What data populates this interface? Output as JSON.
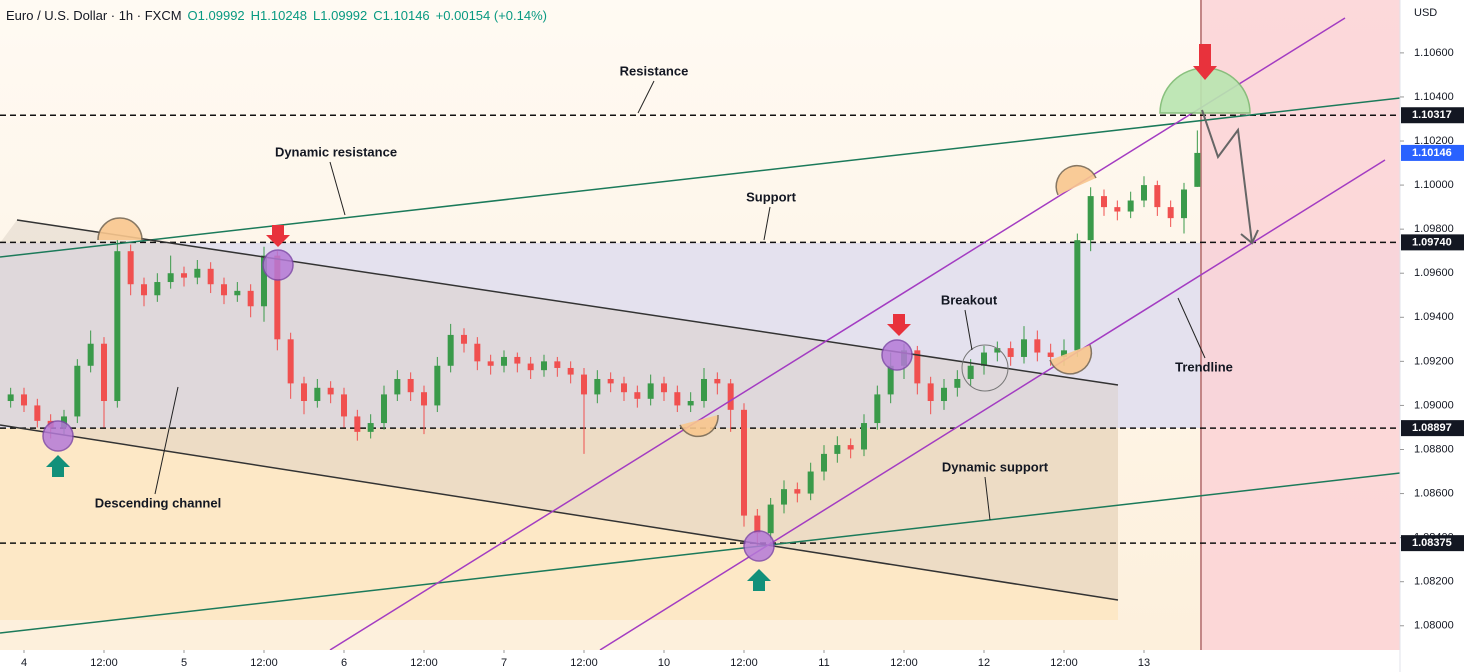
{
  "chart_data": {
    "type": "candlestick",
    "title": "Euro / U.S. Dollar · 1h · FXCM",
    "ohlc": [
      "O1.09992",
      "H1.10248",
      "L1.09992",
      "C1.10146"
    ],
    "change": "+0.00154 (+0.14%)",
    "y_unit": "USD",
    "up_color": "#3a9a4a",
    "down_color": "#f0504f",
    "ylim": [
      1.0789,
      1.1084
    ],
    "yticks": [
      {
        "value": 1.106,
        "label": "1.10600"
      },
      {
        "value": 1.104,
        "label": "1.10400"
      },
      {
        "value": 1.102,
        "label": "1.10200"
      },
      {
        "value": 1.1,
        "label": "1.10000"
      },
      {
        "value": 1.098,
        "label": "1.09800"
      },
      {
        "value": 1.096,
        "label": "1.09600"
      },
      {
        "value": 1.094,
        "label": "1.09400"
      },
      {
        "value": 1.092,
        "label": "1.09200"
      },
      {
        "value": 1.09,
        "label": "1.09000"
      },
      {
        "value": 1.088,
        "label": "1.08800"
      },
      {
        "value": 1.086,
        "label": "1.08600"
      },
      {
        "value": 1.084,
        "label": "1.08400"
      },
      {
        "value": 1.082,
        "label": "1.08200"
      },
      {
        "value": 1.08,
        "label": "1.08000"
      }
    ],
    "xlim": [
      -0.8,
      104.2
    ],
    "xticks": [
      {
        "value": 1,
        "label": "4"
      },
      {
        "value": 7,
        "label": "12:00"
      },
      {
        "value": 13,
        "label": "5"
      },
      {
        "value": 19,
        "label": "12:00"
      },
      {
        "value": 25,
        "label": "6"
      },
      {
        "value": 31,
        "label": "12:00"
      },
      {
        "value": 37,
        "label": "7"
      },
      {
        "value": 43,
        "label": "12:00"
      },
      {
        "value": 49,
        "label": "10"
      },
      {
        "value": 55,
        "label": "12:00"
      },
      {
        "value": 61,
        "label": "11"
      },
      {
        "value": 67,
        "label": "12:00"
      },
      {
        "value": 73,
        "label": "12"
      },
      {
        "value": 79,
        "label": "12:00"
      },
      {
        "value": 85,
        "label": "13"
      }
    ],
    "price_levels": [
      {
        "value": 1.10317,
        "label": "1.10317",
        "dashed": true,
        "color": "#131722"
      },
      {
        "value": 1.10146,
        "label": "1.10146",
        "dashed": false,
        "color": "#2962ff"
      },
      {
        "value": 1.0974,
        "label": "1.09740",
        "dashed": true,
        "color": "#131722"
      },
      {
        "value": 1.08897,
        "label": "1.08897",
        "dashed": true,
        "color": "#131722"
      },
      {
        "value": 1.08375,
        "label": "1.08375",
        "dashed": true,
        "color": "#131722"
      }
    ],
    "annotations": [
      "Resistance",
      "Dynamic resistance",
      "Support",
      "Descending channel",
      "Breakout",
      "Dynamic support",
      "Trendline"
    ],
    "open": [
      1.0902,
      1.0905,
      1.09,
      1.0893,
      1.089,
      1.0895,
      1.0918,
      1.0928,
      1.0902,
      1.097,
      1.0955,
      1.095,
      1.0956,
      1.096,
      1.0958,
      1.0962,
      1.0955,
      1.095,
      1.0952,
      1.0945,
      1.0968,
      1.093,
      1.091,
      1.0902,
      1.0908,
      1.0905,
      1.0895,
      1.0888,
      1.0892,
      1.0905,
      1.0912,
      1.0906,
      1.09,
      1.0918,
      1.0932,
      1.0928,
      1.092,
      1.0918,
      1.0922,
      1.0919,
      1.0916,
      1.092,
      1.0917,
      1.0914,
      1.0905,
      1.0912,
      1.091,
      1.0906,
      1.0903,
      1.091,
      1.0906,
      1.09,
      1.0902,
      1.0912,
      1.091,
      1.0898,
      1.085,
      1.0842,
      1.0855,
      1.0862,
      1.086,
      1.087,
      1.0878,
      1.0882,
      1.088,
      1.0892,
      1.0905,
      1.0918,
      1.0925,
      1.091,
      1.0902,
      1.0908,
      1.0912,
      1.0918,
      1.0924,
      1.0926,
      1.0922,
      1.093,
      1.0924,
      1.0922,
      1.0925,
      1.0975,
      1.0995,
      1.099,
      1.0988,
      1.0993,
      1.1,
      1.099,
      1.0985,
      1.09992
    ],
    "high": [
      1.0908,
      1.0908,
      1.0903,
      1.0896,
      1.0898,
      1.0921,
      1.0934,
      1.0931,
      1.0975,
      1.0973,
      1.0958,
      1.096,
      1.0968,
      1.0963,
      1.0966,
      1.0965,
      1.0958,
      1.0956,
      1.0955,
      1.0972,
      1.097,
      1.0933,
      1.0913,
      1.0912,
      1.0911,
      1.0908,
      1.0898,
      1.0896,
      1.0909,
      1.0916,
      1.0915,
      1.0909,
      1.0922,
      1.0937,
      1.0935,
      1.0931,
      1.0923,
      1.0925,
      1.0924,
      1.0922,
      1.0923,
      1.0922,
      1.092,
      1.0917,
      1.0916,
      1.0915,
      1.0913,
      1.0909,
      1.0914,
      1.0913,
      1.0909,
      1.0906,
      1.0917,
      1.0915,
      1.0912,
      1.0901,
      1.0853,
      1.0858,
      1.0866,
      1.0865,
      1.0874,
      1.0882,
      1.0886,
      1.0885,
      1.0896,
      1.0909,
      1.0924,
      1.0928,
      1.0927,
      1.0913,
      1.0912,
      1.0916,
      1.0921,
      1.0927,
      1.0929,
      1.0929,
      1.0936,
      1.0934,
      1.0928,
      1.093,
      1.0978,
      1.0999,
      1.0998,
      1.0993,
      1.0997,
      1.1004,
      1.1002,
      1.0993,
      1.1001,
      1.10248
    ],
    "low": [
      1.0899,
      1.0897,
      1.089,
      1.0885,
      1.0887,
      1.0892,
      1.0915,
      1.089,
      1.0899,
      1.095,
      1.0945,
      1.0947,
      1.0953,
      1.0954,
      1.0955,
      1.0951,
      1.0946,
      1.0947,
      1.094,
      1.0938,
      1.0925,
      1.0903,
      1.0896,
      1.0899,
      1.0901,
      1.089,
      1.0884,
      1.0885,
      1.0889,
      1.0902,
      1.0902,
      1.0887,
      1.0897,
      1.0915,
      1.0924,
      1.0916,
      1.0914,
      1.0915,
      1.0915,
      1.0912,
      1.0913,
      1.0913,
      1.091,
      1.0878,
      1.0901,
      1.0906,
      1.0902,
      1.0899,
      1.09,
      1.0902,
      1.0897,
      1.0897,
      1.0899,
      1.0905,
      1.0888,
      1.0845,
      1.0836,
      1.0839,
      1.0851,
      1.0856,
      1.0857,
      1.0866,
      1.0874,
      1.0876,
      1.0877,
      1.0889,
      1.0901,
      1.0912,
      1.0905,
      1.0896,
      1.0898,
      1.0904,
      1.0909,
      1.0914,
      1.092,
      1.0918,
      1.0919,
      1.092,
      1.0918,
      1.0918,
      1.0922,
      1.097,
      1.0986,
      1.0984,
      1.0985,
      1.099,
      1.0986,
      1.0981,
      1.0978,
      1.09992
    ],
    "close": [
      1.0905,
      1.09,
      1.0893,
      1.089,
      1.0895,
      1.0918,
      1.0928,
      1.0902,
      1.097,
      1.0955,
      1.095,
      1.0956,
      1.096,
      1.0958,
      1.0962,
      1.0955,
      1.095,
      1.0952,
      1.0945,
      1.0968,
      1.093,
      1.091,
      1.0902,
      1.0908,
      1.0905,
      1.0895,
      1.0888,
      1.0892,
      1.0905,
      1.0912,
      1.0906,
      1.09,
      1.0918,
      1.0932,
      1.0928,
      1.092,
      1.0918,
      1.0922,
      1.0919,
      1.0916,
      1.092,
      1.0917,
      1.0914,
      1.0905,
      1.0912,
      1.091,
      1.0906,
      1.0903,
      1.091,
      1.0906,
      1.09,
      1.0902,
      1.0912,
      1.091,
      1.0898,
      1.085,
      1.0842,
      1.0855,
      1.0862,
      1.086,
      1.087,
      1.0878,
      1.0882,
      1.088,
      1.0892,
      1.0905,
      1.0918,
      1.0925,
      1.091,
      1.0902,
      1.0908,
      1.0912,
      1.0918,
      1.0924,
      1.0926,
      1.0922,
      1.093,
      1.0924,
      1.0922,
      1.0925,
      1.0975,
      1.0995,
      1.099,
      1.0988,
      1.0993,
      1.1,
      1.099,
      1.0985,
      1.0998,
      1.10146
    ]
  }
}
